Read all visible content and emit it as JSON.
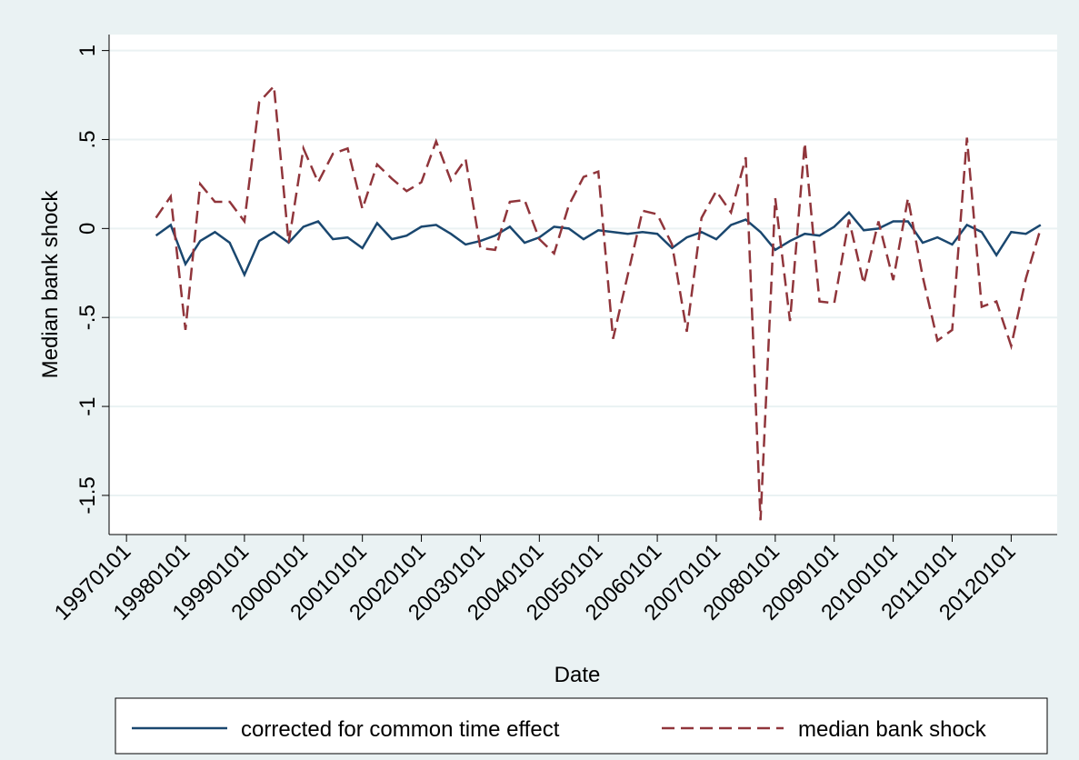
{
  "chart_data": {
    "type": "line",
    "x_label": "Date",
    "y_label": "Median bank shock",
    "x": [
      "19970701",
      "19971001",
      "19980101",
      "19980401",
      "19980701",
      "19981001",
      "19990101",
      "19990401",
      "19990701",
      "19991001",
      "20000101",
      "20000401",
      "20000701",
      "20001001",
      "20010101",
      "20010401",
      "20010701",
      "20011001",
      "20020101",
      "20020401",
      "20020701",
      "20021001",
      "20030101",
      "20030401",
      "20030701",
      "20031001",
      "20040101",
      "20040401",
      "20040701",
      "20041001",
      "20050101",
      "20050401",
      "20050701",
      "20051001",
      "20060101",
      "20060401",
      "20060701",
      "20061001",
      "20070101",
      "20070401",
      "20070701",
      "20071001",
      "20080101",
      "20080401",
      "20080701",
      "20081001",
      "20090101",
      "20090401",
      "20090701",
      "20091001",
      "20100101",
      "20100401",
      "20100701",
      "20101001",
      "20110101",
      "20110401",
      "20110701",
      "20111001",
      "20120101",
      "20120401",
      "20120701"
    ],
    "series": [
      {
        "name": "corrected for common time effect",
        "color": "#1a476f",
        "dash": false,
        "values": [
          -0.04,
          0.02,
          -0.2,
          -0.07,
          -0.02,
          -0.08,
          -0.26,
          -0.07,
          -0.02,
          -0.08,
          0.01,
          0.04,
          -0.06,
          -0.05,
          -0.11,
          0.03,
          -0.06,
          -0.04,
          0.01,
          0.02,
          -0.03,
          -0.09,
          -0.07,
          -0.04,
          0.01,
          -0.08,
          -0.05,
          0.01,
          0.0,
          -0.06,
          -0.01,
          -0.02,
          -0.03,
          -0.02,
          -0.03,
          -0.11,
          -0.05,
          -0.02,
          -0.06,
          0.02,
          0.05,
          -0.02,
          -0.12,
          -0.07,
          -0.03,
          -0.04,
          0.01,
          0.09,
          -0.01,
          0.0,
          0.04,
          0.04,
          -0.08,
          -0.05,
          -0.09,
          0.02,
          -0.02,
          -0.15,
          -0.02,
          -0.03,
          0.02
        ]
      },
      {
        "name": "median bank shock",
        "color": "#90353b",
        "dash": true,
        "values": [
          0.06,
          0.18,
          -0.57,
          0.25,
          0.15,
          0.15,
          0.04,
          0.71,
          0.8,
          -0.08,
          0.45,
          0.26,
          0.42,
          0.45,
          0.11,
          0.36,
          0.28,
          0.21,
          0.26,
          0.49,
          0.27,
          0.39,
          -0.11,
          -0.12,
          0.15,
          0.16,
          -0.06,
          -0.14,
          0.13,
          0.29,
          0.32,
          -0.62,
          -0.26,
          0.1,
          0.08,
          -0.09,
          -0.58,
          0.06,
          0.21,
          0.09,
          0.4,
          -1.64,
          0.17,
          -0.52,
          0.48,
          -0.41,
          -0.42,
          0.05,
          -0.31,
          0.04,
          -0.29,
          0.17,
          -0.27,
          -0.63,
          -0.57,
          0.51,
          -0.44,
          -0.41,
          -0.66,
          -0.28,
          0.0
        ]
      }
    ],
    "xlim": [
      "19960915",
      "20121012"
    ],
    "xticks": [
      "19970101",
      "19980101",
      "19990101",
      "20000101",
      "20010101",
      "20020101",
      "20030101",
      "20040101",
      "20050101",
      "20060101",
      "20070101",
      "20080101",
      "20090101",
      "20100101",
      "20110101",
      "20120101"
    ],
    "ylim": [
      -1.72,
      1.09
    ],
    "yticks": [
      1,
      {
        "value": 0.5,
        "label": ".5"
      },
      0,
      {
        "value": -0.5,
        "label": "-.5"
      },
      -1,
      {
        "value": -1.5,
        "label": "-1.5"
      }
    ],
    "grid": true,
    "legend": "bottom"
  }
}
